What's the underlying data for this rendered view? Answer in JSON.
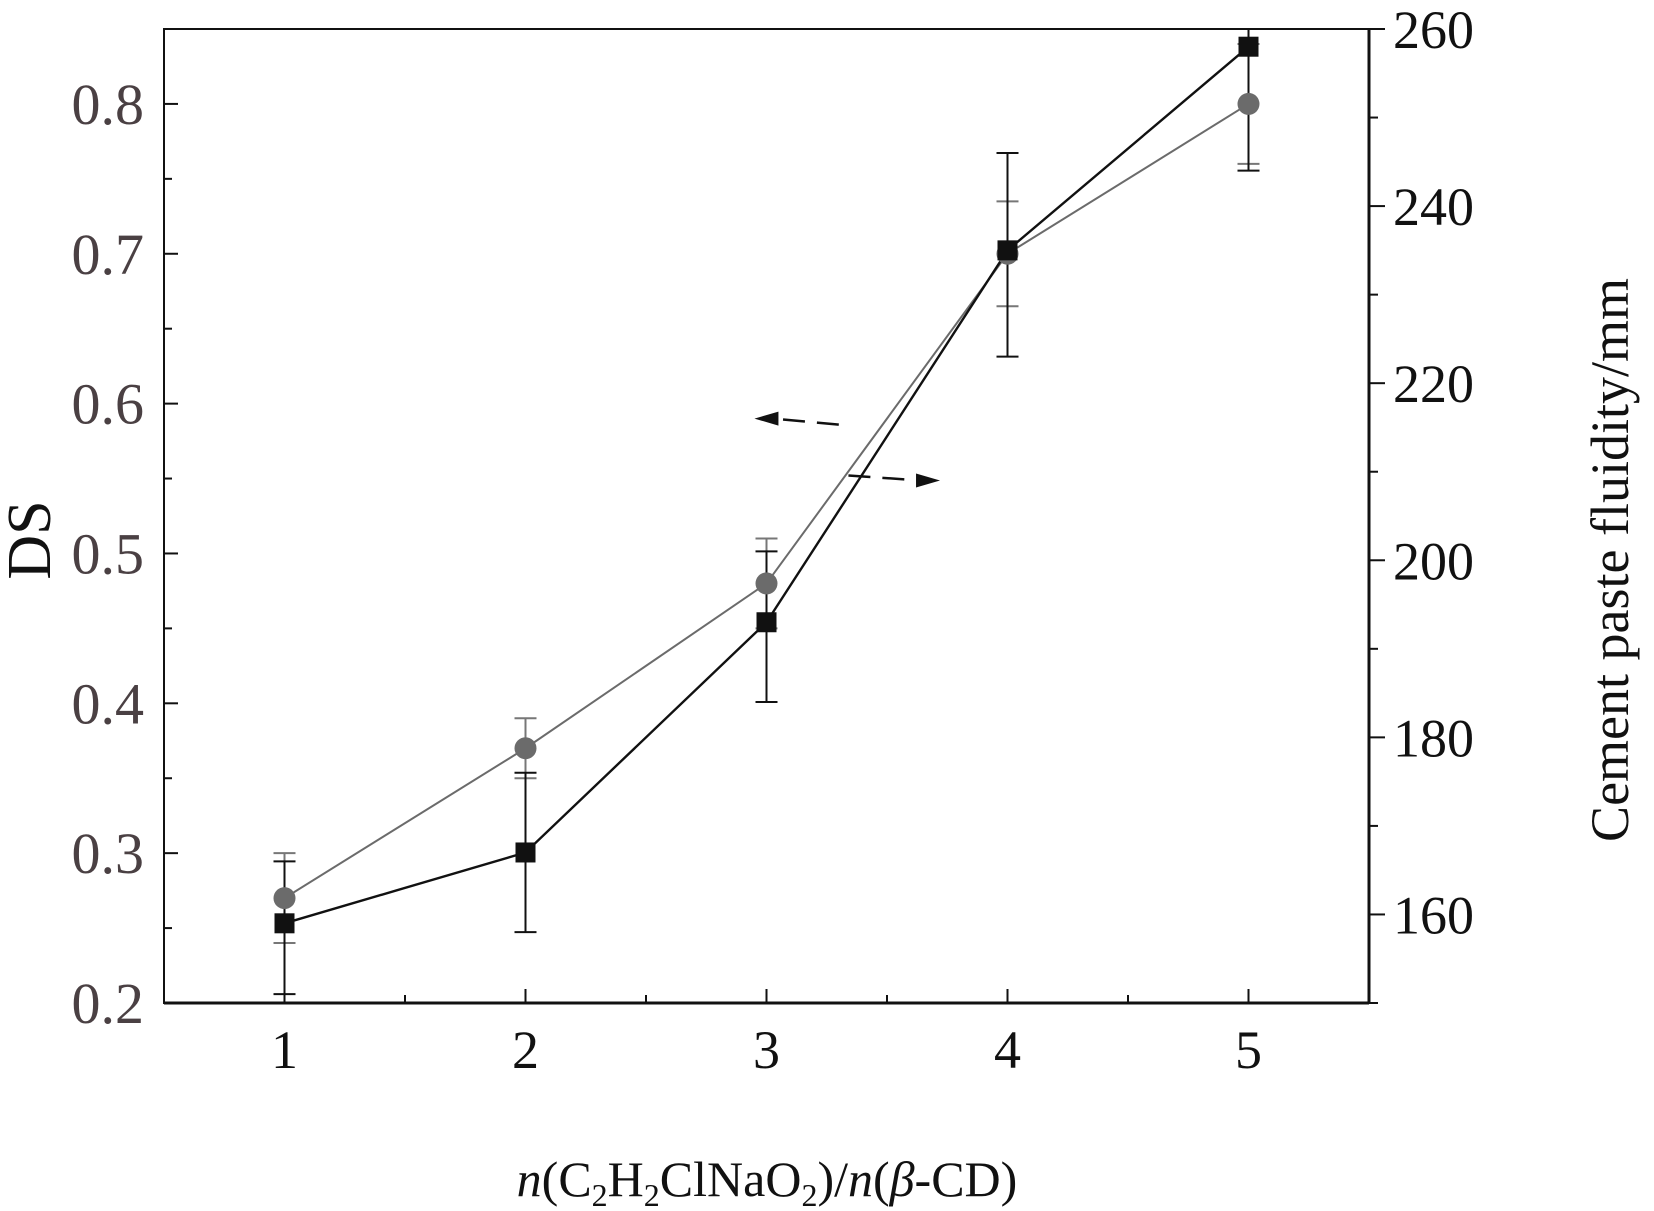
{
  "chart_data": {
    "type": "line",
    "x": [
      1,
      2,
      3,
      4,
      5
    ],
    "xlabel": {
      "n1": "n",
      "open": "(C",
      "sub2a": "2",
      "h": "H",
      "sub2b": "2",
      "cl": "ClNaO",
      "sub2c": "2",
      "mid": ")/",
      "n2": "n",
      "open2": "(",
      "beta": "β",
      "end": "-CD)"
    },
    "xlim": [
      0.5,
      5.5
    ],
    "x_ticks": [
      "1",
      "2",
      "3",
      "4",
      "5"
    ],
    "left_axis": {
      "label": "DS",
      "ylim": [
        0.2,
        0.85
      ],
      "ticks": [
        "0.2",
        "0.3",
        "0.4",
        "0.5",
        "0.6",
        "0.7",
        "0.8"
      ]
    },
    "right_axis": {
      "label": "Cement paste fluidity/mm",
      "ylim": [
        150,
        260
      ],
      "ticks": [
        "160",
        "180",
        "200",
        "220",
        "240",
        "260"
      ]
    },
    "series": [
      {
        "axis": "left",
        "marker": "circle",
        "color": "#6b6b6b",
        "x": [
          1,
          2,
          3,
          4,
          5
        ],
        "y": [
          0.27,
          0.37,
          0.48,
          0.7,
          0.8
        ],
        "error_low": [
          0.24,
          0.35,
          0.45,
          0.665,
          0.76
        ],
        "error_high": [
          0.3,
          0.39,
          0.51,
          0.735,
          0.84
        ]
      },
      {
        "axis": "right",
        "marker": "square",
        "color": "#111111",
        "x": [
          1,
          2,
          3,
          4,
          5
        ],
        "y": [
          159,
          167,
          193,
          235,
          258
        ],
        "error_low": [
          151,
          158,
          184,
          223,
          244
        ],
        "error_high": [
          166,
          176,
          201,
          246,
          260
        ]
      }
    ],
    "annotations": [
      {
        "type": "arrow",
        "direction": "left",
        "points_to": "left axis"
      },
      {
        "type": "arrow",
        "direction": "right",
        "points_to": "right axis"
      }
    ],
    "grid": false,
    "legend": "none"
  }
}
